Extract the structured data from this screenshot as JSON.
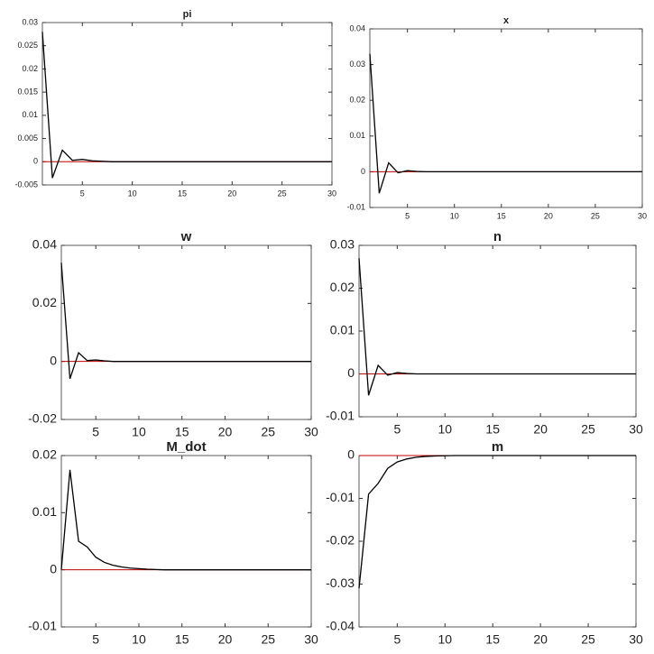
{
  "chart_data": [
    {
      "type": "line",
      "title": "pi",
      "x": [
        1,
        2,
        3,
        4,
        5,
        6,
        7,
        8,
        9,
        10,
        11,
        12,
        13,
        14,
        15,
        16,
        17,
        18,
        19,
        20,
        21,
        22,
        23,
        24,
        25,
        26,
        27,
        28,
        29,
        30
      ],
      "values": [
        0.028,
        -0.0035,
        0.0025,
        0.0003,
        0.0005,
        0.0002,
        0.0001,
        0,
        0,
        0,
        0,
        0,
        0,
        0,
        0,
        0,
        0,
        0,
        0,
        0,
        0,
        0,
        0,
        0,
        0,
        0,
        0,
        0,
        0,
        0
      ],
      "color": "#000000",
      "hline": {
        "value": 0,
        "color": "#c00000"
      },
      "xlim": [
        1,
        30
      ],
      "xticks": [
        5,
        10,
        15,
        20,
        25,
        30
      ],
      "ylim": [
        -0.005,
        0.03
      ],
      "yticks": [
        -0.005,
        0,
        0.005,
        0.01,
        0.015,
        0.02,
        0.025,
        0.03
      ]
    },
    {
      "type": "line",
      "title": "x",
      "x": [
        1,
        2,
        3,
        4,
        5,
        6,
        7,
        8,
        9,
        10,
        11,
        12,
        13,
        14,
        15,
        16,
        17,
        18,
        19,
        20,
        21,
        22,
        23,
        24,
        25,
        26,
        27,
        28,
        29,
        30
      ],
      "values": [
        0.033,
        -0.006,
        0.0025,
        -0.0003,
        0.0003,
        0.0001,
        0,
        0,
        0,
        0,
        0,
        0,
        0,
        0,
        0,
        0,
        0,
        0,
        0,
        0,
        0,
        0,
        0,
        0,
        0,
        0,
        0,
        0,
        0,
        0
      ],
      "color": "#000000",
      "hline": {
        "value": 0,
        "color": "#c00000"
      },
      "xlim": [
        1,
        30
      ],
      "xticks": [
        5,
        10,
        15,
        20,
        25,
        30
      ],
      "ylim": [
        -0.01,
        0.04
      ],
      "yticks": [
        -0.01,
        0,
        0.01,
        0.02,
        0.03,
        0.04
      ]
    },
    {
      "type": "line",
      "title": "w",
      "x": [
        1,
        2,
        3,
        4,
        5,
        6,
        7,
        8,
        9,
        10,
        11,
        12,
        13,
        14,
        15,
        16,
        17,
        18,
        19,
        20,
        21,
        22,
        23,
        24,
        25,
        26,
        27,
        28,
        29,
        30
      ],
      "values": [
        0.034,
        -0.006,
        0.003,
        0.0003,
        0.0005,
        0.0002,
        0,
        0,
        0,
        0,
        0,
        0,
        0,
        0,
        0,
        0,
        0,
        0,
        0,
        0,
        0,
        0,
        0,
        0,
        0,
        0,
        0,
        0,
        0,
        0
      ],
      "color": "#000000",
      "hline": {
        "value": 0,
        "color": "#c00000"
      },
      "xlim": [
        1,
        30
      ],
      "xticks": [
        5,
        10,
        15,
        20,
        25,
        30
      ],
      "ylim": [
        -0.02,
        0.04
      ],
      "yticks": [
        -0.02,
        0,
        0.02,
        0.04
      ]
    },
    {
      "type": "line",
      "title": "n",
      "x": [
        1,
        2,
        3,
        4,
        5,
        6,
        7,
        8,
        9,
        10,
        11,
        12,
        13,
        14,
        15,
        16,
        17,
        18,
        19,
        20,
        21,
        22,
        23,
        24,
        25,
        26,
        27,
        28,
        29,
        30
      ],
      "values": [
        0.027,
        -0.005,
        0.002,
        -0.0003,
        0.0003,
        0.0001,
        0,
        0,
        0,
        0,
        0,
        0,
        0,
        0,
        0,
        0,
        0,
        0,
        0,
        0,
        0,
        0,
        0,
        0,
        0,
        0,
        0,
        0,
        0,
        0
      ],
      "color": "#000000",
      "hline": {
        "value": 0,
        "color": "#c00000"
      },
      "xlim": [
        1,
        30
      ],
      "xticks": [
        5,
        10,
        15,
        20,
        25,
        30
      ],
      "ylim": [
        -0.01,
        0.03
      ],
      "yticks": [
        -0.01,
        0,
        0.01,
        0.02,
        0.03
      ]
    },
    {
      "type": "line",
      "title": "M_dot",
      "x": [
        1,
        2,
        3,
        4,
        5,
        6,
        7,
        8,
        9,
        10,
        11,
        12,
        13,
        14,
        15,
        16,
        17,
        18,
        19,
        20,
        21,
        22,
        23,
        24,
        25,
        26,
        27,
        28,
        29,
        30
      ],
      "values": [
        0,
        0.0175,
        0.005,
        0.004,
        0.0022,
        0.0013,
        0.0008,
        0.0005,
        0.0003,
        0.0002,
        0.0001,
        5e-05,
        0,
        0,
        0,
        0,
        0,
        0,
        0,
        0,
        0,
        0,
        0,
        0,
        0,
        0,
        0,
        0,
        0,
        0
      ],
      "color": "#000000",
      "hline": {
        "value": 0,
        "color": "#c00000"
      },
      "xlim": [
        1,
        30
      ],
      "xticks": [
        5,
        10,
        15,
        20,
        25,
        30
      ],
      "ylim": [
        -0.01,
        0.02
      ],
      "yticks": [
        -0.01,
        0,
        0.01,
        0.02
      ]
    },
    {
      "type": "line",
      "title": "m",
      "x": [
        1,
        2,
        3,
        4,
        5,
        6,
        7,
        8,
        9,
        10,
        11,
        12,
        13,
        14,
        15,
        16,
        17,
        18,
        19,
        20,
        21,
        22,
        23,
        24,
        25,
        26,
        27,
        28,
        29,
        30
      ],
      "values": [
        -0.031,
        -0.009,
        -0.0065,
        -0.003,
        -0.0015,
        -0.0008,
        -0.0004,
        -0.0002,
        -0.0001,
        -5e-05,
        0,
        0,
        0,
        0,
        0,
        0,
        0,
        0,
        0,
        0,
        0,
        0,
        0,
        0,
        0,
        0,
        0,
        0,
        0,
        0
      ],
      "color": "#000000",
      "hline": {
        "value": 0,
        "color": "#c00000"
      },
      "xlim": [
        1,
        30
      ],
      "xticks": [
        5,
        10,
        15,
        20,
        25,
        30
      ],
      "ylim": [
        -0.04,
        0
      ],
      "yticks": [
        -0.04,
        -0.03,
        -0.02,
        -0.01,
        0
      ]
    }
  ]
}
